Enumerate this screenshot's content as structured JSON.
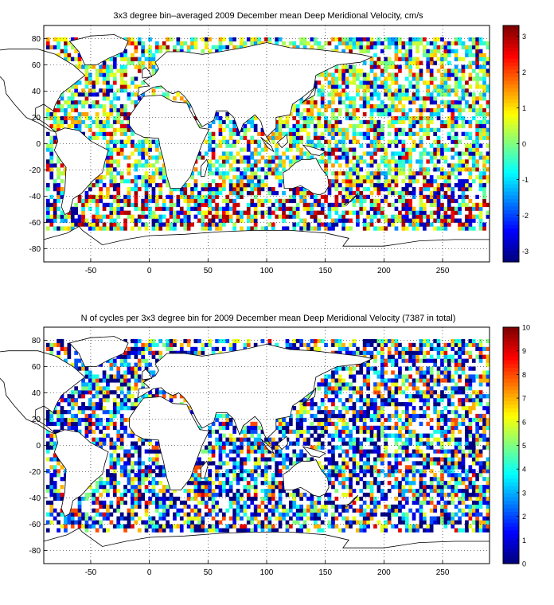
{
  "chart_data": [
    {
      "type": "heatmap",
      "title": "3x3 degree bin–averaged 2009 December mean Deep Meridional Velocity, cm/s",
      "xlabel": "",
      "ylabel": "",
      "xlim": [
        -90,
        290
      ],
      "ylim": [
        -90,
        90
      ],
      "x_ticks": [
        -50,
        0,
        50,
        100,
        150,
        200,
        250
      ],
      "y_ticks": [
        80,
        60,
        40,
        20,
        0,
        -20,
        -40,
        -60,
        -80
      ],
      "grid": true,
      "grid_style": "dotted",
      "bin_size_deg": 3,
      "colormap": "jet",
      "colorbar": {
        "min": -3.3,
        "max": 3.3,
        "ticks": [
          3,
          2,
          1,
          0,
          -1,
          -2,
          -3
        ]
      },
      "background": "map",
      "field": "velocity",
      "seed": 7
    },
    {
      "type": "heatmap",
      "title": "N of cycles per 3x3 degree bin for 2009 December mean Deep Meridional Velocity (7387 in total)",
      "xlabel": "",
      "ylabel": "",
      "xlim": [
        -90,
        290
      ],
      "ylim": [
        -90,
        90
      ],
      "x_ticks": [
        -50,
        0,
        50,
        100,
        150,
        200,
        250
      ],
      "y_ticks": [
        80,
        60,
        40,
        20,
        0,
        -20,
        -40,
        -60,
        -80
      ],
      "grid": true,
      "grid_style": "dotted",
      "bin_size_deg": 3,
      "colormap": "jet",
      "colorbar": {
        "min": 0,
        "max": 10,
        "ticks": [
          10,
          9,
          8,
          7,
          6,
          5,
          4,
          3,
          2,
          1,
          0
        ]
      },
      "background": "map",
      "field": "count",
      "seed": 7
    }
  ]
}
